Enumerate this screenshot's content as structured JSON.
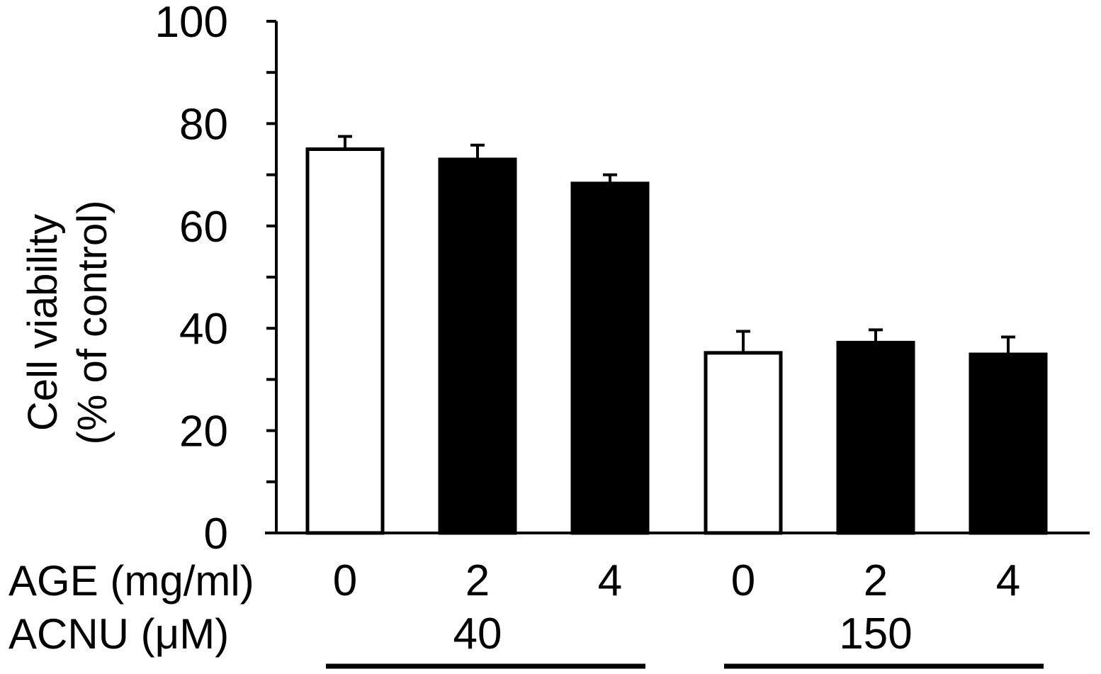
{
  "chart_data": {
    "type": "bar",
    "ylabel": [
      "Cell viability",
      "(% of control)"
    ],
    "ylim": [
      0,
      100
    ],
    "y_major_ticks": [
      0,
      20,
      40,
      60,
      80,
      100
    ],
    "y_minor_step": 10,
    "grid": false,
    "legend": null,
    "row_labels": {
      "age": "AGE (mg/ml)",
      "acnu": "ACNU (μM)"
    },
    "categories": [
      "0",
      "2",
      "4",
      "0",
      "2",
      "4"
    ],
    "groups": [
      {
        "label": "40",
        "indices": [
          0,
          1,
          2
        ]
      },
      {
        "label": "150",
        "indices": [
          3,
          4,
          5
        ]
      }
    ],
    "values": [
      75,
      73,
      68.3,
      35.2,
      37.2,
      34.9
    ],
    "errors": [
      2.5,
      2.8,
      1.7,
      4.2,
      2.5,
      3.4
    ],
    "fills": [
      "#ffffff",
      "#000000",
      "#000000",
      "#ffffff",
      "#000000",
      "#000000"
    ],
    "colors": {
      "axis": "#000000",
      "outline": "#000000"
    }
  }
}
